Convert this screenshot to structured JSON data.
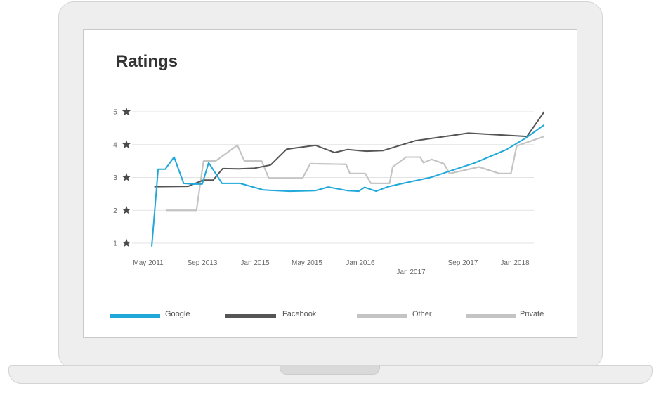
{
  "chart_data": {
    "type": "line",
    "title": "Ratings",
    "xlabel": "",
    "ylabel": "",
    "ylim": [
      1,
      5
    ],
    "y_ticks": [
      "1",
      "2",
      "3",
      "4",
      "5"
    ],
    "y_tick_icon": "star-icon",
    "x_ticks": [
      "May 2011",
      "Sep 2013",
      "Jan 2015",
      "May 2015",
      "Jan 2016",
      "Jan 2017",
      "Sep 2017",
      "Jan 2018"
    ],
    "grid": true,
    "legend_position": "bottom",
    "series": [
      {
        "name": "Google",
        "color": "#1fa8d9",
        "points": [
          [
            0,
            0.9
          ],
          [
            0.1,
            3.25
          ],
          [
            0.21,
            3.25
          ],
          [
            0.35,
            3.62
          ],
          [
            0.5,
            2.82
          ],
          [
            0.65,
            2.8
          ],
          [
            0.79,
            2.8
          ],
          [
            0.89,
            3.45
          ],
          [
            1.1,
            2.82
          ],
          [
            1.38,
            2.82
          ],
          [
            1.75,
            2.62
          ],
          [
            2.16,
            2.58
          ],
          [
            2.56,
            2.6
          ],
          [
            2.76,
            2.71
          ],
          [
            3.06,
            2.6
          ],
          [
            3.24,
            2.58
          ],
          [
            3.33,
            2.7
          ],
          [
            3.51,
            2.58
          ],
          [
            3.7,
            2.72
          ],
          [
            4.0,
            2.85
          ],
          [
            4.36,
            3.0
          ],
          [
            5.05,
            3.44
          ],
          [
            5.55,
            3.85
          ],
          [
            5.85,
            4.2
          ],
          [
            6.14,
            4.6
          ]
        ]
      },
      {
        "name": "Facebook",
        "color": "#555555",
        "points": [
          [
            0.04,
            2.72
          ],
          [
            0.57,
            2.73
          ],
          [
            0.81,
            2.92
          ],
          [
            0.96,
            2.92
          ],
          [
            1.11,
            3.27
          ],
          [
            1.36,
            3.26
          ],
          [
            1.61,
            3.28
          ],
          [
            1.86,
            3.38
          ],
          [
            2.11,
            3.86
          ],
          [
            2.56,
            3.98
          ],
          [
            2.86,
            3.76
          ],
          [
            3.06,
            3.85
          ],
          [
            3.36,
            3.8
          ],
          [
            3.62,
            3.82
          ],
          [
            4.13,
            4.12
          ],
          [
            4.7,
            4.28
          ],
          [
            4.95,
            4.35
          ],
          [
            5.87,
            4.25
          ],
          [
            6.14,
            5.0
          ]
        ]
      },
      {
        "name": "Other",
        "color": "#c4c4c4",
        "points": [
          [
            0.22,
            2.0
          ],
          [
            0.7,
            2.0
          ],
          [
            0.81,
            3.5
          ],
          [
            1.0,
            3.5
          ],
          [
            1.34,
            3.98
          ],
          [
            1.45,
            3.5
          ],
          [
            1.72,
            3.5
          ],
          [
            1.83,
            2.98
          ],
          [
            2.36,
            2.98
          ],
          [
            2.48,
            3.42
          ],
          [
            3.04,
            3.4
          ],
          [
            3.1,
            3.12
          ],
          [
            3.34,
            3.12
          ],
          [
            3.43,
            2.82
          ],
          [
            3.72,
            2.82
          ],
          [
            3.77,
            3.32
          ],
          [
            3.98,
            3.62
          ],
          [
            4.2,
            3.62
          ],
          [
            4.25,
            3.45
          ],
          [
            4.38,
            3.55
          ],
          [
            4.57,
            3.42
          ],
          [
            4.66,
            3.12
          ],
          [
            5.12,
            3.32
          ],
          [
            5.44,
            3.12
          ],
          [
            5.62,
            3.12
          ],
          [
            5.71,
            3.96
          ],
          [
            6.14,
            4.25
          ]
        ]
      },
      {
        "name": "Private",
        "color": "#c4c4c4",
        "points": [
          [
            0.22,
            2.0
          ],
          [
            0.7,
            2.0
          ],
          [
            0.81,
            3.5
          ],
          [
            1.0,
            3.5
          ],
          [
            1.34,
            3.98
          ],
          [
            1.45,
            3.5
          ],
          [
            1.72,
            3.5
          ],
          [
            1.83,
            2.98
          ],
          [
            2.36,
            2.98
          ],
          [
            2.48,
            3.42
          ],
          [
            3.04,
            3.4
          ],
          [
            3.1,
            3.12
          ],
          [
            3.34,
            3.12
          ],
          [
            3.43,
            2.82
          ],
          [
            3.72,
            2.82
          ],
          [
            3.77,
            3.32
          ],
          [
            3.98,
            3.62
          ],
          [
            4.2,
            3.62
          ],
          [
            4.25,
            3.45
          ],
          [
            4.38,
            3.55
          ],
          [
            4.57,
            3.42
          ],
          [
            4.66,
            3.12
          ],
          [
            5.12,
            3.32
          ],
          [
            5.44,
            3.12
          ],
          [
            5.62,
            3.12
          ],
          [
            5.71,
            3.96
          ],
          [
            6.14,
            4.25
          ]
        ]
      }
    ]
  }
}
